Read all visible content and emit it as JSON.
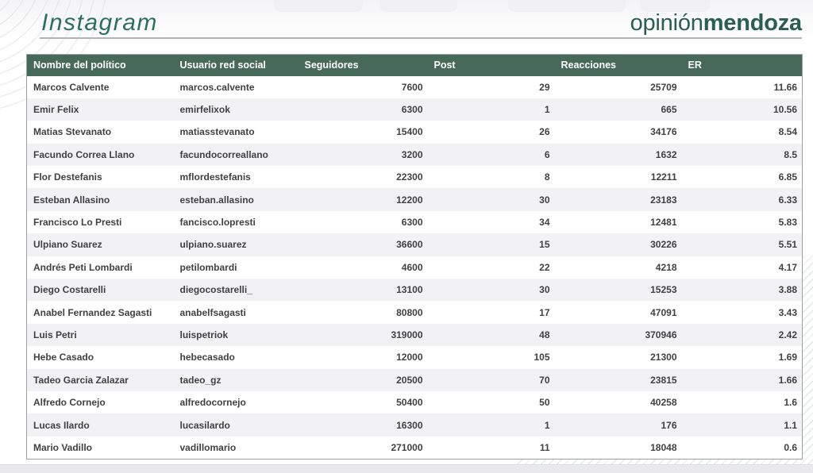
{
  "header": {
    "title": "Instagram",
    "brand_regular": "opinión",
    "brand_bold": "mendoza"
  },
  "colors": {
    "table_header_bg": "#47695a",
    "title_green": "#2d6e5f",
    "brand_green": "#2b5e50",
    "row_stripe": "#f2f2f4",
    "cell_text": "#414144"
  },
  "table": {
    "columns": [
      {
        "key": "nombre",
        "label": "Nombre del político",
        "align": "left"
      },
      {
        "key": "usuario",
        "label": "Usuario red social",
        "align": "left"
      },
      {
        "key": "seguidores",
        "label": "Seguidores",
        "align": "right"
      },
      {
        "key": "post",
        "label": "Post",
        "align": "right"
      },
      {
        "key": "reacciones",
        "label": "Reacciones",
        "align": "right"
      },
      {
        "key": "er",
        "label": "ER",
        "align": "right"
      }
    ],
    "rows": [
      [
        "Marcos Calvente",
        "marcos.calvente",
        "7600",
        "29",
        "25709",
        "11.66"
      ],
      [
        "Emir Felix",
        "emirfelixok",
        "6300",
        "1",
        "665",
        "10.56"
      ],
      [
        "Matias Stevanato",
        "matiasstevanato",
        "15400",
        "26",
        "34176",
        "8.54"
      ],
      [
        "Facundo Correa Llano",
        "facundocorreallano",
        "3200",
        "6",
        "1632",
        "8.5"
      ],
      [
        "Flor Destefanis",
        "mflordestefanis",
        "22300",
        "8",
        "12211",
        "6.85"
      ],
      [
        "Esteban Allasino",
        "esteban.allasino",
        "12200",
        "30",
        "23183",
        "6.33"
      ],
      [
        "Francisco Lo Presti",
        "fancisco.lopresti",
        "6300",
        "34",
        "12481",
        "5.83"
      ],
      [
        "Ulpiano Suarez",
        "ulpiano.suarez",
        "36600",
        "15",
        "30226",
        "5.51"
      ],
      [
        "Andrés Peti Lombardi",
        "petilombardi",
        "4600",
        "22",
        "4218",
        "4.17"
      ],
      [
        "Diego Costarelli",
        "diegocostarelli_",
        "13100",
        "30",
        "15253",
        "3.88"
      ],
      [
        "Anabel Fernandez Sagasti",
        "anabelfsagasti",
        "80800",
        "17",
        "47091",
        "3.43"
      ],
      [
        "Luis Petri",
        "luispetriok",
        "319000",
        "48",
        "370946",
        "2.42"
      ],
      [
        "Hebe Casado",
        "hebecasado",
        "12000",
        "105",
        "21300",
        "1.69"
      ],
      [
        "Tadeo Garcia Zalazar",
        "tadeo_gz",
        "20500",
        "70",
        "23815",
        "1.66"
      ],
      [
        "Alfredo Cornejo",
        "alfredocornejo",
        "50400",
        "50",
        "40258",
        "1.6"
      ],
      [
        "Lucas Ilardo",
        "lucasilardo",
        "16300",
        "1",
        "176",
        "1.1"
      ],
      [
        "Mario Vadillo",
        "vadillomario",
        "271000",
        "11",
        "18048",
        "0.6"
      ]
    ]
  }
}
